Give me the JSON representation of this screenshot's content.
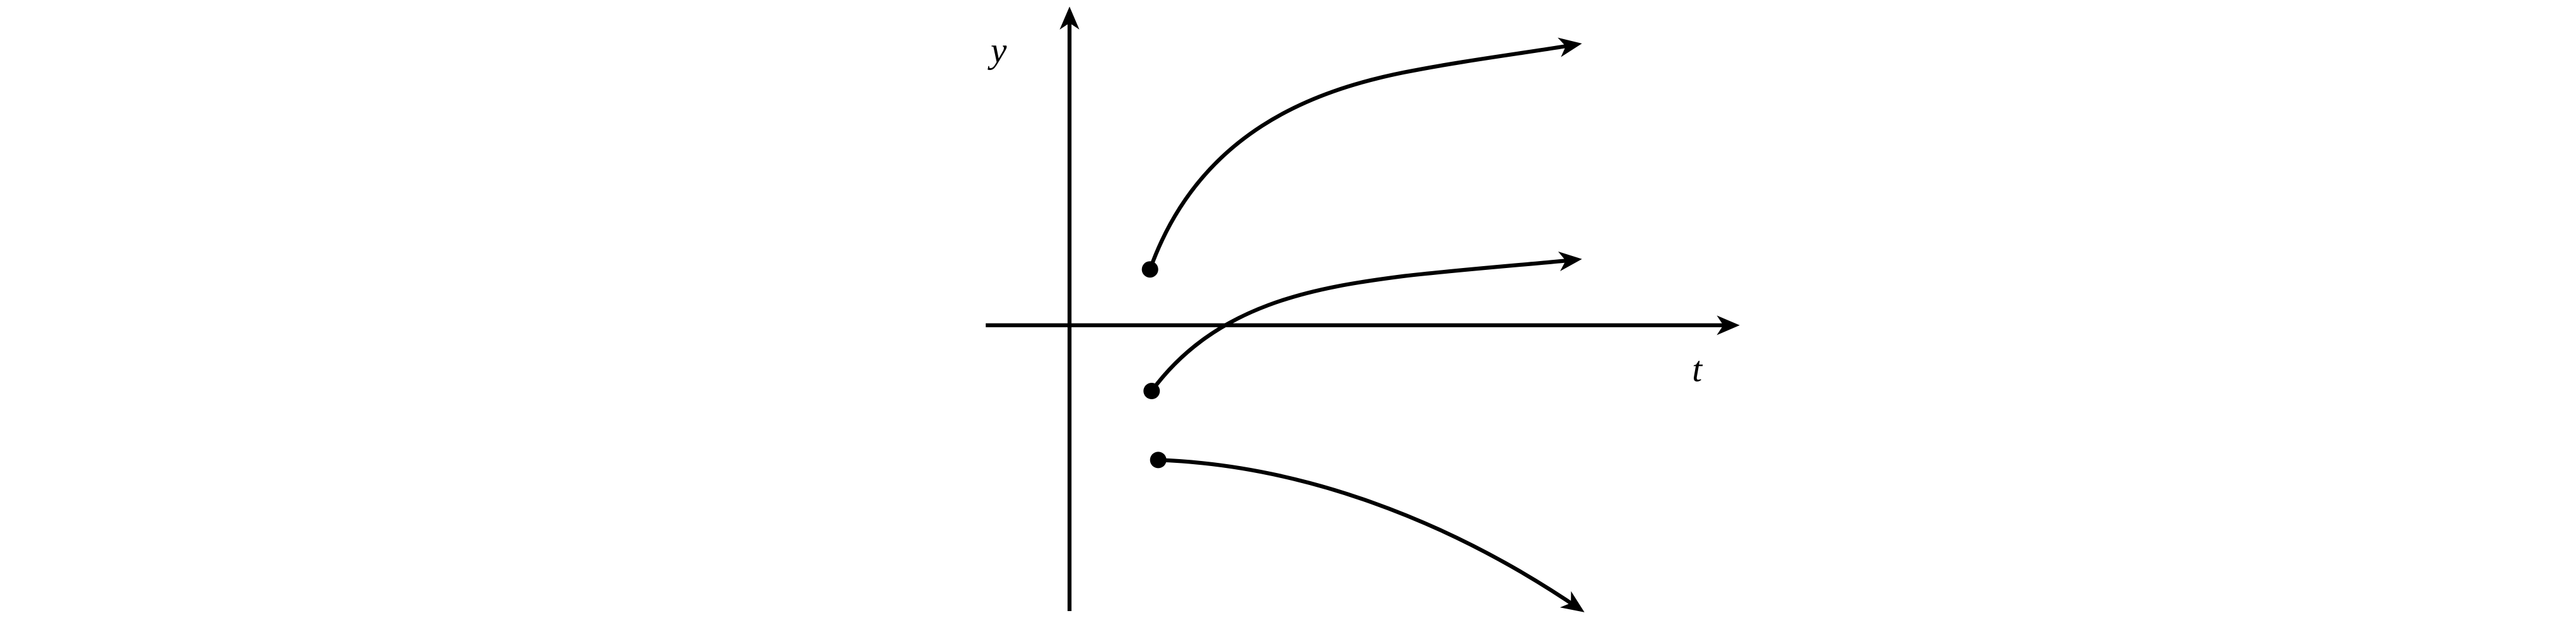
{
  "axes": {
    "y_label": "y",
    "x_label": "t"
  }
}
